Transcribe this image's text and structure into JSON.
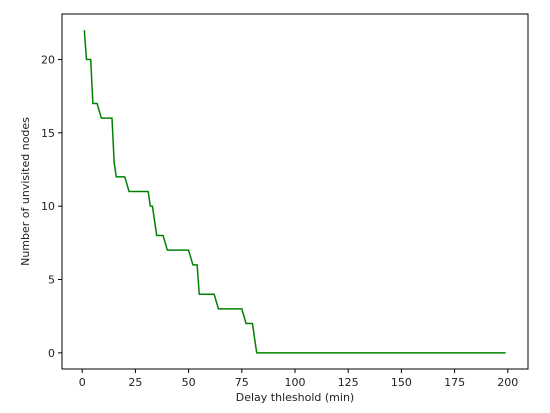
{
  "chart_data": {
    "type": "line",
    "title": "",
    "xlabel": "Delay thleshold (min)",
    "ylabel": "Number of unvisited nodes",
    "xlim": [
      -9.5,
      209.5
    ],
    "ylim": [
      -1.1,
      23.1
    ],
    "xticks": [
      0,
      25,
      50,
      75,
      100,
      125,
      150,
      175,
      200
    ],
    "yticks": [
      0,
      5,
      10,
      15,
      20
    ],
    "grid": false,
    "series": [
      {
        "color": "#008000",
        "x": [
          1,
          2,
          4,
          5,
          7,
          9,
          14,
          15,
          16,
          20,
          22,
          31,
          32,
          33,
          35,
          38,
          40,
          50,
          52,
          54,
          55,
          57,
          62,
          64,
          75,
          77,
          80,
          81,
          82,
          199
        ],
        "y": [
          22,
          20,
          20,
          17,
          17,
          16,
          16,
          13,
          12,
          12,
          11,
          11,
          10,
          10,
          8,
          8,
          7,
          7,
          6,
          6,
          4,
          4,
          4,
          3,
          3,
          2,
          2,
          1,
          0,
          0
        ]
      }
    ]
  }
}
